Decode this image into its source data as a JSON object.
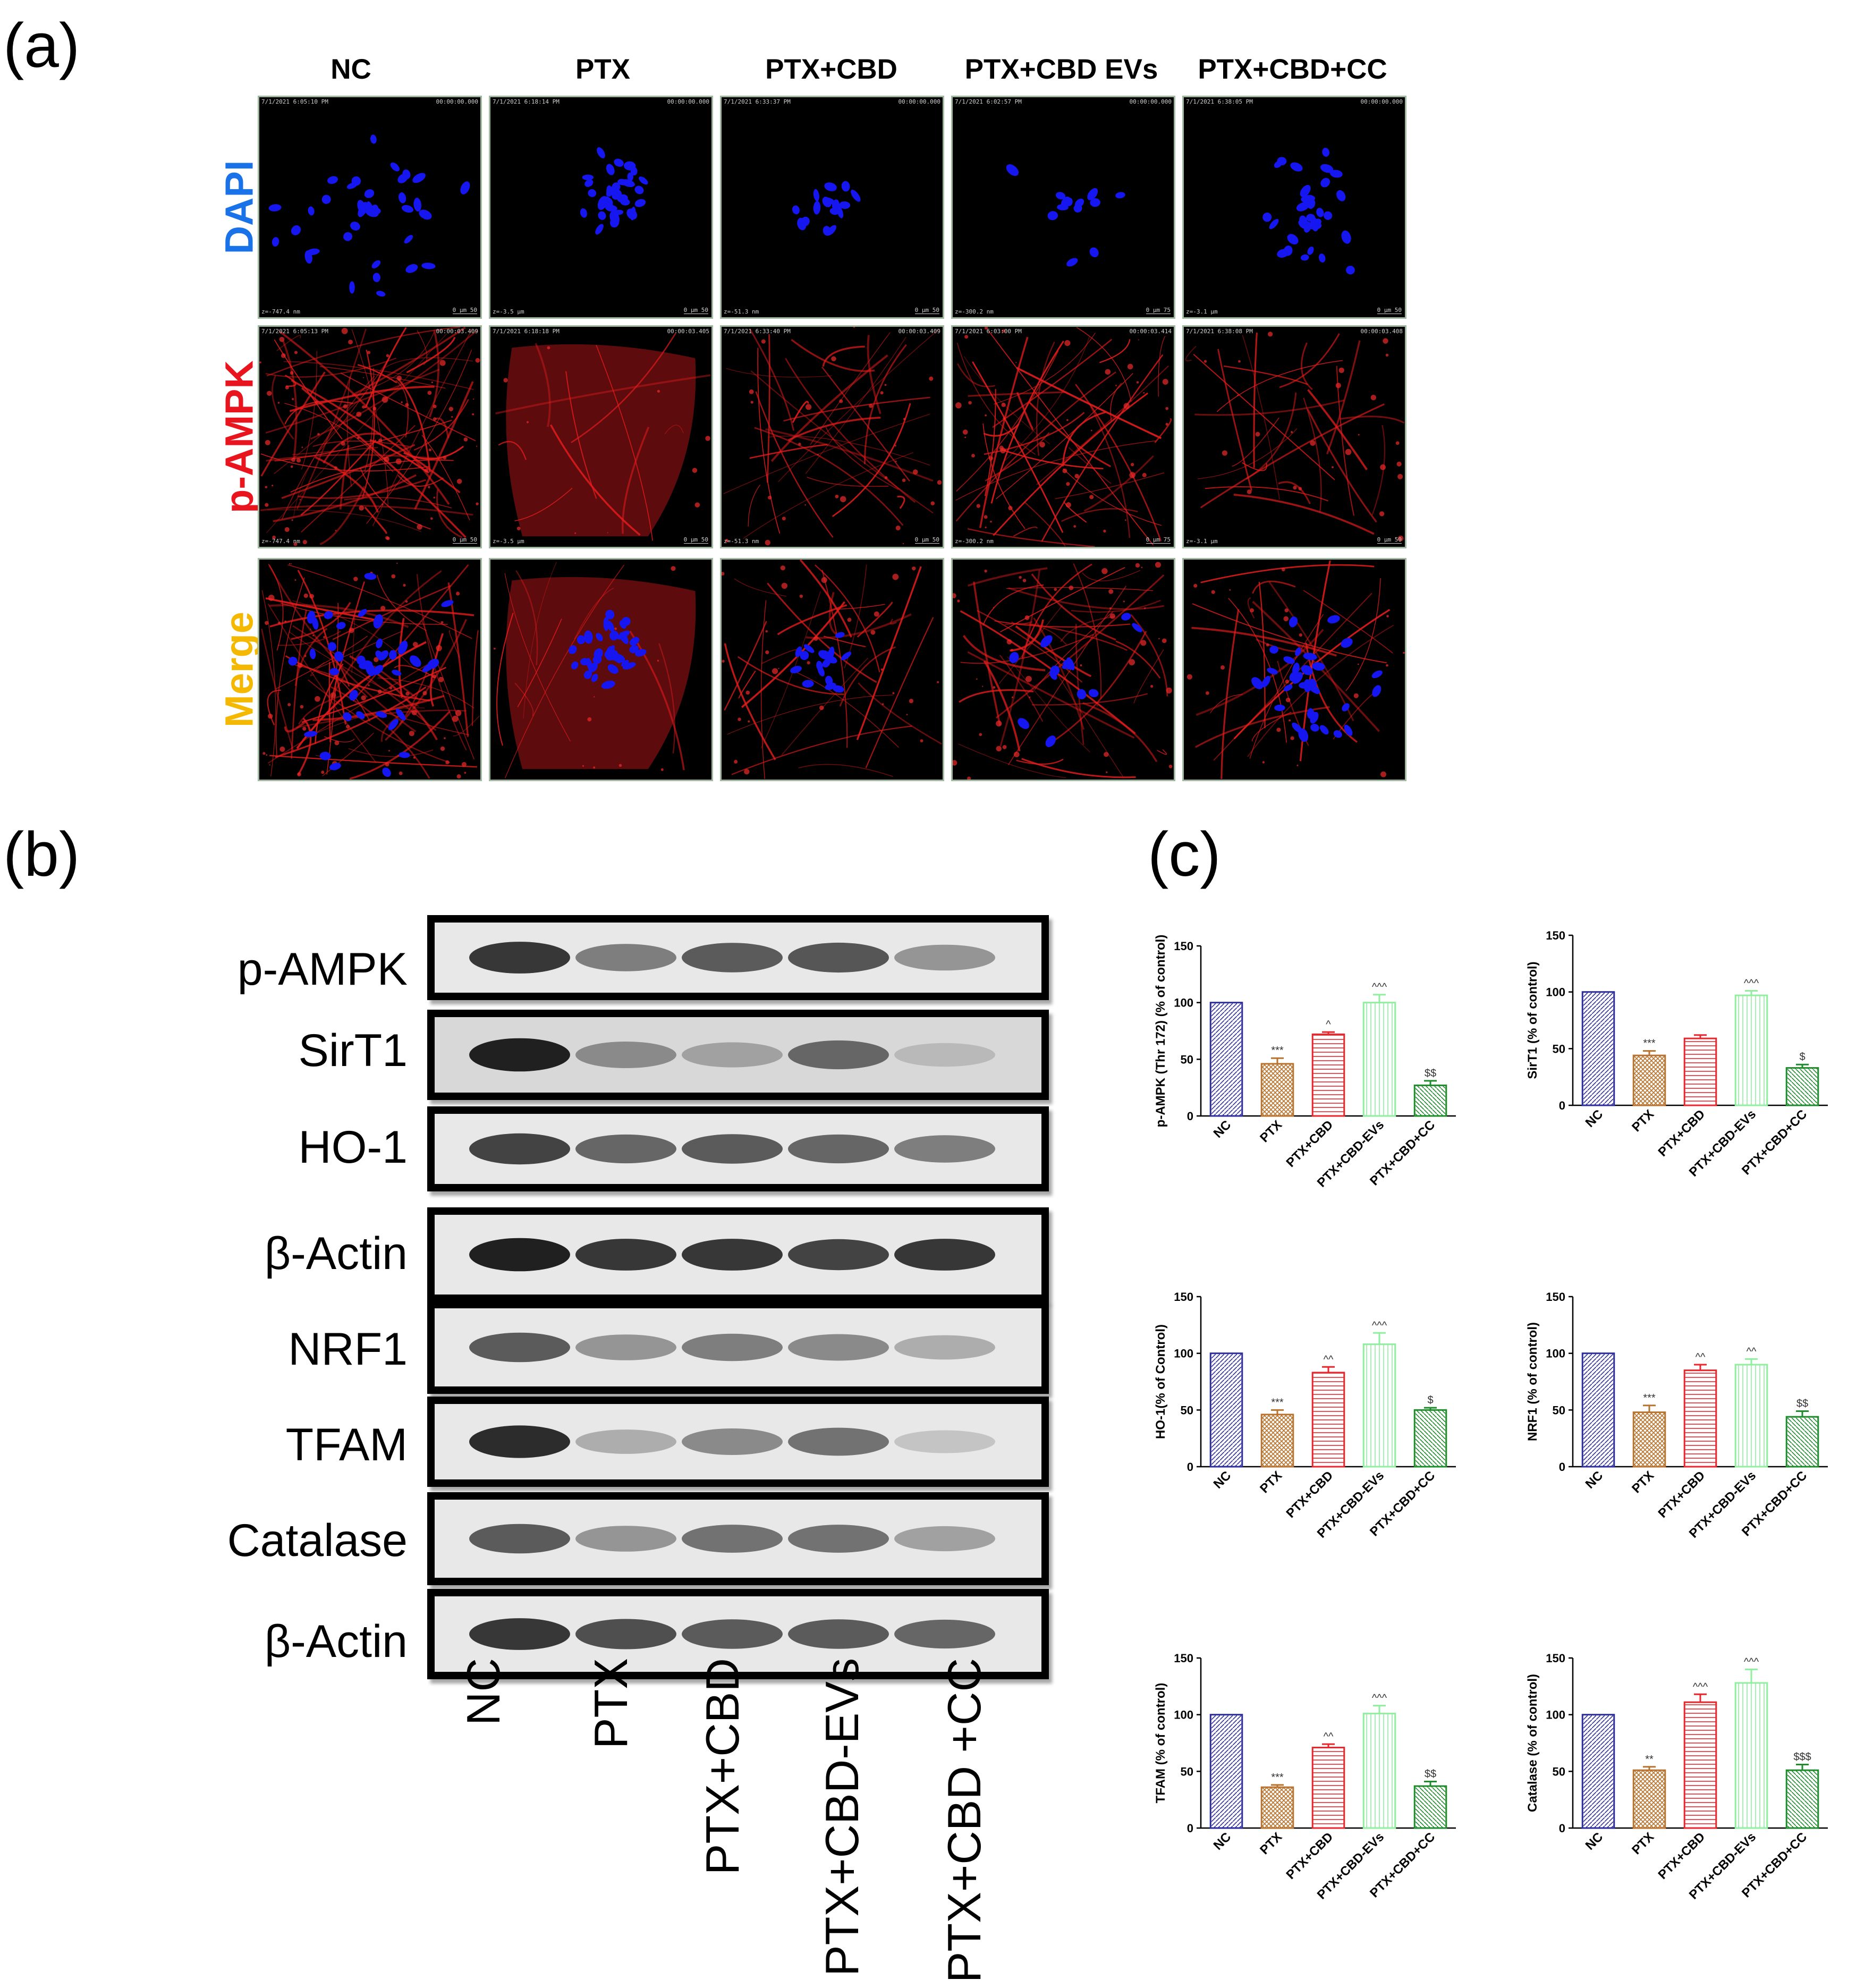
{
  "panels": {
    "a": "(a)",
    "b": "(b)",
    "c": "(c)"
  },
  "microscopy": {
    "columns": [
      "NC",
      "PTX",
      "PTX+CBD",
      "PTX+CBD EVs",
      "PTX+CBD+CC"
    ],
    "rows": [
      {
        "label": "DAPI",
        "color": "#1a72e8"
      },
      {
        "label": "p-AMPK",
        "color": "#e8141e"
      },
      {
        "label": "Merge",
        "color": "#f5b800"
      }
    ],
    "timestamps_dapi": [
      "7/1/2021 6:05:10 PM",
      "7/1/2021 6:18:14 PM",
      "7/1/2021 6:33:37 PM",
      "7/1/2021 6:02:57 PM",
      "7/1/2021 6:38:05 PM"
    ],
    "timestamps_ampk": [
      "7/1/2021 6:05:13 PM",
      "7/1/2021 6:18:18 PM",
      "7/1/2021 6:33:40 PM",
      "7/1/2021 6:03:00 PM",
      "7/1/2021 6:38:08 PM"
    ],
    "elapsed_dapi": [
      "00:00:00.000",
      "00:00:00.000",
      "00:00:00.000",
      "00:00:00.000",
      "00:00:00.000"
    ],
    "elapsed_ampk": [
      "00:00:03.409",
      "00:00:03.405",
      "00:00:03.409",
      "00:00:03.414",
      "00:00:03.408"
    ],
    "z": [
      "z=-747.4 nm",
      "z=-3.5 µm",
      "z=-51.3 nm",
      "z=-300.2 nm",
      "z=-3.1 µm"
    ],
    "scale": [
      "0 µm 50",
      "0 µm 50",
      "0 µm 50",
      "0 µm 75",
      "0 µm 50"
    ]
  },
  "western": {
    "bands": [
      "p-AMPK",
      "SirT1",
      "HO-1",
      "β-Actin",
      "NRF1",
      "TFAM",
      "Catalase",
      "β-Actin"
    ],
    "lanes": [
      "NC",
      "PTX",
      "PTX+CBD",
      "PTX+CBD-EVs",
      "PTX+CBD +CC"
    ]
  },
  "chart_data": [
    {
      "type": "bar",
      "ylabel": "p-AMPK (Thr 172) (% of control)",
      "ylim": [
        0,
        150
      ],
      "yticks": [
        0,
        50,
        100,
        150
      ],
      "categories": [
        "NC",
        "PTX",
        "PTX+CBD",
        "PTX+CBD-EVs",
        "PTX+CBD+CC"
      ],
      "values": [
        100,
        46,
        72,
        100,
        27
      ],
      "errors": [
        0,
        5,
        2,
        7,
        4
      ],
      "annotations": [
        "",
        "***",
        "^",
        "^^^",
        "$$"
      ]
    },
    {
      "type": "bar",
      "ylabel": "SirT1 (% of control)",
      "ylim": [
        0,
        150
      ],
      "yticks": [
        0,
        50,
        100,
        150
      ],
      "categories": [
        "NC",
        "PTX",
        "PTX+CBD",
        "PTX+CBD-EVs",
        "PTX+CBD+CC"
      ],
      "values": [
        100,
        44,
        59,
        97,
        33
      ],
      "errors": [
        0,
        4,
        3,
        4,
        3
      ],
      "annotations": [
        "",
        "***",
        "",
        "^^^",
        "$"
      ]
    },
    {
      "type": "bar",
      "ylabel": "HO-1(% of Control)",
      "ylim": [
        0,
        150
      ],
      "yticks": [
        0,
        50,
        100,
        150
      ],
      "categories": [
        "NC",
        "PTX",
        "PTX+CBD",
        "PTX+CBD-EVs",
        "PTX+CBD+CC"
      ],
      "values": [
        100,
        46,
        83,
        108,
        50
      ],
      "errors": [
        0,
        4,
        5,
        10,
        2
      ],
      "annotations": [
        "",
        "***",
        "^^",
        "^^^",
        "$"
      ]
    },
    {
      "type": "bar",
      "ylabel": "NRF1 (% of control)",
      "ylim": [
        0,
        150
      ],
      "yticks": [
        0,
        50,
        100,
        150
      ],
      "categories": [
        "NC",
        "PTX",
        "PTX+CBD",
        "PTX+CBD-EVs",
        "PTX+CBD+CC"
      ],
      "values": [
        100,
        48,
        85,
        90,
        44
      ],
      "errors": [
        0,
        6,
        5,
        5,
        5
      ],
      "annotations": [
        "",
        "***",
        "^^",
        "^^",
        "$$"
      ]
    },
    {
      "type": "bar",
      "ylabel": "TFAM (% of control)",
      "ylim": [
        0,
        150
      ],
      "yticks": [
        0,
        50,
        100,
        150
      ],
      "categories": [
        "NC",
        "PTX",
        "PTX+CBD",
        "PTX+CBD-EVs",
        "PTX+CBD+CC"
      ],
      "values": [
        100,
        36,
        71,
        101,
        37
      ],
      "errors": [
        0,
        2,
        3,
        7,
        4
      ],
      "annotations": [
        "",
        "***",
        "^^",
        "^^^",
        "$$"
      ]
    },
    {
      "type": "bar",
      "ylabel": "Catalase (% of control)",
      "ylim": [
        0,
        150
      ],
      "yticks": [
        0,
        50,
        100,
        150
      ],
      "categories": [
        "NC",
        "PTX",
        "PTX+CBD",
        "PTX+CBD-EVs",
        "PTX+CBD+CC"
      ],
      "values": [
        100,
        51,
        111,
        128,
        51
      ],
      "errors": [
        0,
        3,
        7,
        12,
        5
      ],
      "annotations": [
        "",
        "**",
        "^^^",
        "^^^",
        "$$$"
      ]
    }
  ],
  "bar_colors": [
    "#2e2e9c",
    "#b8732e",
    "#e8262c",
    "#8fef9f",
    "#1f8c2c"
  ]
}
